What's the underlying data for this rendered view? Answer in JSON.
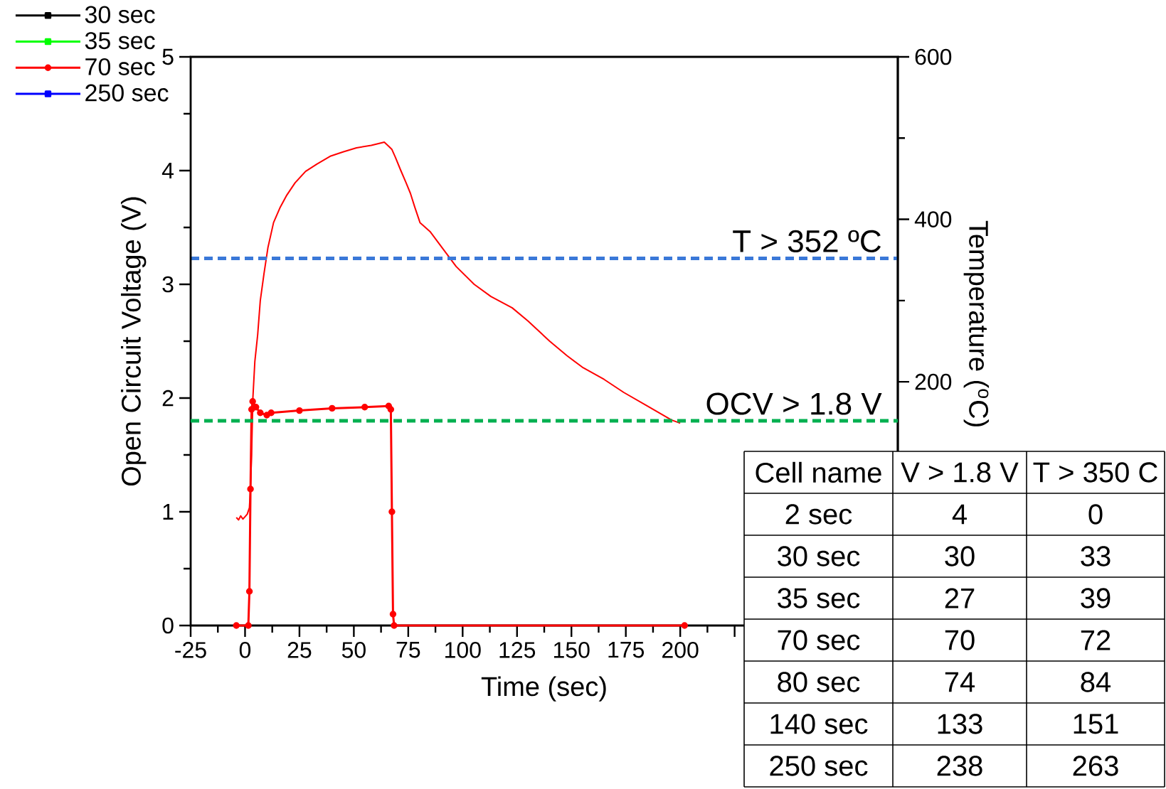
{
  "chart_data": {
    "type": "line",
    "xlabel": "Time (sec)",
    "ylabel": "Open Circuit Voltage (V)",
    "y2label": "Temperature ($^{o}$C)",
    "xlim": [
      -25,
      300
    ],
    "xticks": [
      -25,
      0,
      25,
      50,
      75,
      100,
      125,
      150,
      175,
      200,
      {
        "value": 225,
        "label": null
      }
    ],
    "ylim": [
      0,
      5
    ],
    "yticks": [
      0,
      1,
      2,
      3,
      4,
      5
    ],
    "y2lim": [
      -100,
      600
    ],
    "y2ticks": [
      200,
      400,
      600
    ],
    "legend": "top left",
    "series": [
      {
        "name": "30 sec",
        "color": "#000000",
        "marker": "square"
      },
      {
        "name": "35 sec",
        "color": "#00ff00",
        "marker": "square"
      },
      {
        "name": "70 sec",
        "color": "#ff0000",
        "marker": "circle",
        "x": [
          -4,
          1.5,
          2,
          2.5,
          3,
          3.5,
          5,
          7,
          10,
          12,
          25,
          40,
          55,
          66,
          67,
          67.5,
          68,
          68.5,
          202
        ],
        "values": [
          0,
          0,
          0.3,
          1.2,
          1.9,
          1.97,
          1.92,
          1.87,
          1.85,
          1.87,
          1.89,
          1.91,
          1.92,
          1.93,
          1.9,
          1.0,
          0.1,
          0,
          0
        ]
      },
      {
        "color": "#ff0000",
        "axis": "y2",
        "marker": "none",
        "x": [
          -4,
          -3,
          -2,
          -1,
          0,
          1,
          2,
          2.5,
          3,
          3.6,
          4.5,
          5.8,
          7,
          8.7,
          10.5,
          13.1,
          16,
          19,
          23,
          27.8,
          33,
          39.4,
          45,
          51.2,
          58,
          64,
          66,
          67.5,
          69,
          71.6,
          74,
          76,
          78,
          80.4,
          85,
          90.6,
          97,
          105.3,
          113,
          122.8,
          130,
          140,
          148,
          155,
          165,
          174,
          185,
          196,
          200
        ],
        "values": [
          33,
          30,
          35,
          31,
          34,
          37,
          45,
          70,
          110,
          180,
          225,
          258,
          300,
          333,
          365,
          396,
          414,
          429,
          445,
          459,
          468,
          478,
          483,
          488,
          491,
          495,
          490,
          486,
          477,
          460,
          445,
          432,
          415,
          396,
          385,
          365,
          342,
          320,
          305,
          291,
          275,
          250,
          232,
          218,
          203,
          187,
          170,
          153,
          149
        ]
      },
      {
        "name": "250 sec",
        "color": "#0000ff",
        "marker": "square"
      }
    ],
    "ref_lines": [
      {
        "axis": "y2",
        "value": 352,
        "label": "T > 352 ºC",
        "color": "#3a78d8",
        "line_style": "dashed"
      },
      {
        "axis": "y",
        "value": 1.8,
        "label": "OCV > 1.8 V",
        "color": "#00b050",
        "line_style": "dashed"
      }
    ],
    "annotations": [
      "Cell name",
      "V > 1.8 V",
      "T > 350 C",
      "2 sec",
      "4",
      "0",
      "30 sec",
      "30",
      "33",
      "35 sec",
      "27",
      "39",
      "70 sec",
      "70",
      "72",
      "80 sec",
      "74",
      "84",
      "140 sec",
      "133",
      "151",
      "250 sec",
      "238",
      "263"
    ]
  }
}
